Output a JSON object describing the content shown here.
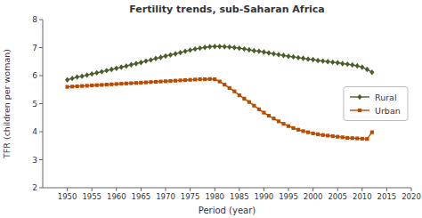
{
  "chart_data": {
    "type": "line",
    "title": "Fertility trends, sub-Saharan Africa",
    "x_label": "Period (year)",
    "y_label": "TFR (children per woman)",
    "x": [
      1950,
      1951,
      1952,
      1953,
      1954,
      1955,
      1956,
      1957,
      1958,
      1959,
      1960,
      1961,
      1962,
      1963,
      1964,
      1965,
      1966,
      1967,
      1968,
      1969,
      1970,
      1971,
      1972,
      1973,
      1974,
      1975,
      1976,
      1977,
      1978,
      1979,
      1980,
      1981,
      1982,
      1983,
      1984,
      1985,
      1986,
      1987,
      1988,
      1989,
      1990,
      1991,
      1992,
      1993,
      1994,
      1995,
      1996,
      1997,
      1998,
      1999,
      2000,
      2001,
      2002,
      2003,
      2004,
      2005,
      2006,
      2007,
      2008,
      2009,
      2010,
      2011,
      2012
    ],
    "series": [
      {
        "name": "Rural",
        "color": "#4a5e2a",
        "marker": "diamond",
        "values": [
          5.85,
          5.9,
          5.95,
          5.98,
          6.02,
          6.06,
          6.1,
          6.14,
          6.18,
          6.22,
          6.26,
          6.3,
          6.34,
          6.39,
          6.43,
          6.47,
          6.52,
          6.56,
          6.61,
          6.65,
          6.7,
          6.74,
          6.78,
          6.82,
          6.87,
          6.91,
          6.95,
          6.98,
          7.01,
          7.03,
          7.04,
          7.04,
          7.03,
          7.02,
          7.0,
          6.98,
          6.95,
          6.92,
          6.89,
          6.87,
          6.84,
          6.81,
          6.78,
          6.75,
          6.72,
          6.69,
          6.67,
          6.64,
          6.62,
          6.59,
          6.57,
          6.54,
          6.52,
          6.5,
          6.48,
          6.46,
          6.43,
          6.41,
          6.38,
          6.35,
          6.3,
          6.22,
          6.12
        ]
      },
      {
        "name": "Urban",
        "color": "#b84c00",
        "marker": "square",
        "values": [
          5.6,
          5.61,
          5.62,
          5.63,
          5.64,
          5.65,
          5.66,
          5.67,
          5.68,
          5.69,
          5.7,
          5.71,
          5.72,
          5.73,
          5.74,
          5.75,
          5.76,
          5.77,
          5.78,
          5.79,
          5.8,
          5.81,
          5.82,
          5.83,
          5.84,
          5.85,
          5.86,
          5.87,
          5.87,
          5.88,
          5.87,
          5.79,
          5.68,
          5.56,
          5.44,
          5.3,
          5.18,
          5.06,
          4.93,
          4.8,
          4.68,
          4.57,
          4.47,
          4.37,
          4.28,
          4.2,
          4.13,
          4.07,
          4.02,
          3.98,
          3.94,
          3.91,
          3.88,
          3.86,
          3.84,
          3.82,
          3.8,
          3.78,
          3.77,
          3.76,
          3.75,
          3.74,
          3.98
        ]
      }
    ],
    "xlim": [
      1945,
      2020
    ],
    "ylim": [
      2,
      8
    ],
    "xticks": [
      1950,
      1955,
      1960,
      1965,
      1970,
      1975,
      1980,
      1985,
      1990,
      1995,
      2000,
      2005,
      2010,
      2015,
      2020
    ],
    "yticks": [
      2,
      3,
      4,
      5,
      6,
      7,
      8
    ],
    "grid": false,
    "legend": "right"
  }
}
